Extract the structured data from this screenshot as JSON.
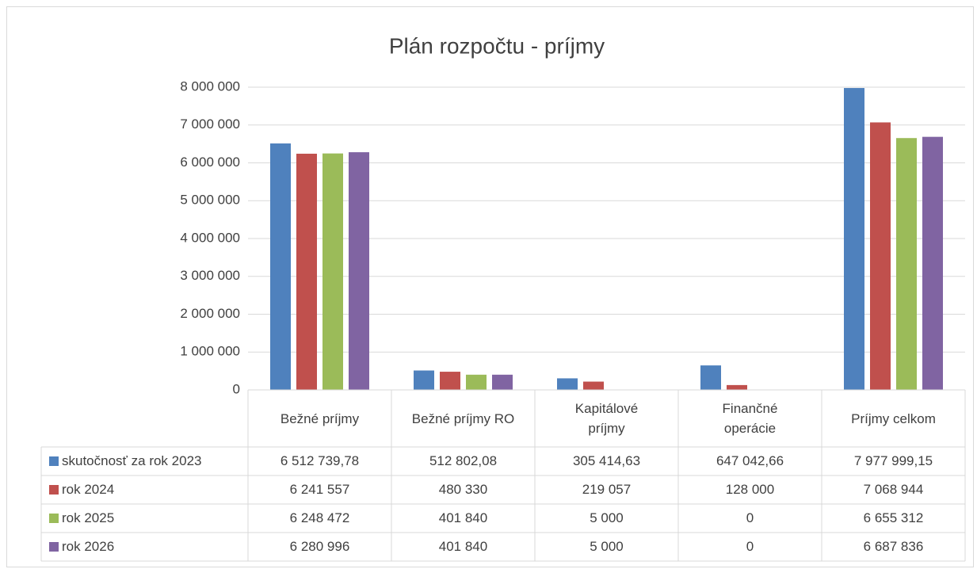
{
  "chart_data": {
    "type": "bar",
    "title": "Plán rozpočtu - príjmy",
    "categories": [
      "Bežné príjmy",
      "Bežné príjmy RO",
      "Kapitálové príjmy",
      "Finančné operácie",
      "Príjmy celkom"
    ],
    "series": [
      {
        "name": "skutočnosť za rok 2023",
        "color": "#4f81bd",
        "values": [
          6512739.78,
          512802.08,
          305414.63,
          647042.66,
          7977999.15
        ],
        "value_labels": [
          "6 512 739,78",
          "512 802,08",
          "305 414,63",
          "647 042,66",
          "7 977 999,15"
        ]
      },
      {
        "name": "rok 2024",
        "color": "#c0504d",
        "values": [
          6241557,
          480330,
          219057,
          128000,
          7068944
        ],
        "value_labels": [
          "6 241 557",
          "480 330",
          "219 057",
          "128 000",
          "7 068 944"
        ]
      },
      {
        "name": "rok 2025",
        "color": "#9bbb59",
        "values": [
          6248472,
          401840,
          5000,
          0,
          6655312
        ],
        "value_labels": [
          "6 248 472",
          "401 840",
          "5 000",
          "0",
          "6 655 312"
        ]
      },
      {
        "name": "rok 2026",
        "color": "#8064a2",
        "values": [
          6280996,
          401840,
          5000,
          0,
          6687836
        ],
        "value_labels": [
          "6 280 996",
          "401 840",
          "5 000",
          "0",
          "6 687 836"
        ]
      }
    ],
    "ylim": [
      0,
      8000000
    ],
    "yticks": [
      0,
      {
        "value": 1000000,
        "label": "1 000 000"
      },
      {
        "value": 2000000,
        "label": "2 000 000"
      },
      {
        "value": 3000000,
        "label": "3 000 000"
      },
      {
        "value": 4000000,
        "label": "4 000 000"
      },
      {
        "value": 5000000,
        "label": "5 000 000"
      },
      {
        "value": 6000000,
        "label": "6 000 000"
      },
      {
        "value": 7000000,
        "label": "7 000 000"
      },
      {
        "value": 8000000,
        "label": "8 000 000"
      }
    ],
    "grid": true
  }
}
